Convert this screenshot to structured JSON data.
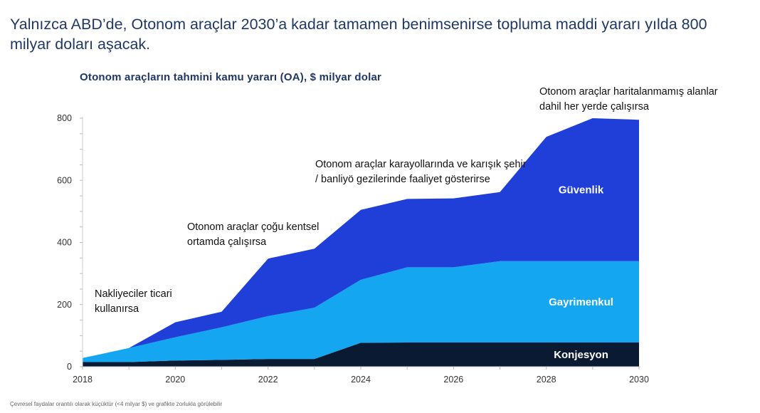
{
  "headline": "Yalnızca ABD’de, Otonom araçlar 2030’a kadar tamamen benimsenirse topluma maddi yararı yılda 800 milyar doları aşacak.",
  "footnote": "Çevresel faydalar orantılı olarak küçüktür (<4 milyar $) ve grafikte zorlukla görülebilir",
  "annotations": [
    "Nakliyeciler ticari kullanırsa",
    "Otonom araçlar çoğu kentsel ortamda çalışırsa",
    "Otonom araçlar karayollarında ve karışık şehir / banliyö gezilerinde faaliyet gösterirse",
    "Otonom araçlar haritalanmamış alanlar dahil her yerde çalışırsa"
  ],
  "colors": {
    "konjesyon": "#0b1a33",
    "gayrimenkul": "#14a6f0",
    "guvenlik": "#1f3fd8",
    "title": "#1f3864"
  },
  "chart_data": {
    "type": "area",
    "stacked": true,
    "title": "Otonom araçların tahmini kamu yararı (OA), $ milyar dolar",
    "xlabel": "",
    "ylabel": "",
    "x": [
      2018,
      2019,
      2020,
      2021,
      2022,
      2023,
      2024,
      2025,
      2026,
      2027,
      2028,
      2029,
      2030
    ],
    "x_ticks": [
      2018,
      2020,
      2022,
      2024,
      2026,
      2028,
      2030
    ],
    "y_ticks": [
      0,
      200,
      400,
      600,
      800
    ],
    "ylim": [
      0,
      800
    ],
    "xlim": [
      2018,
      2030
    ],
    "grid": false,
    "series": [
      {
        "name": "Konjesyon",
        "values": [
          15,
          15,
          20,
          22,
          25,
          25,
          77,
          78,
          78,
          78,
          78,
          78,
          78
        ]
      },
      {
        "name": "Gayrimenkul",
        "values": [
          13,
          45,
          75,
          105,
          138,
          165,
          203,
          242,
          242,
          262,
          262,
          262,
          262
        ]
      },
      {
        "name": "Güvenlik",
        "values": [
          0,
          0,
          48,
          50,
          185,
          190,
          225,
          220,
          222,
          222,
          400,
          460,
          455
        ]
      }
    ]
  }
}
